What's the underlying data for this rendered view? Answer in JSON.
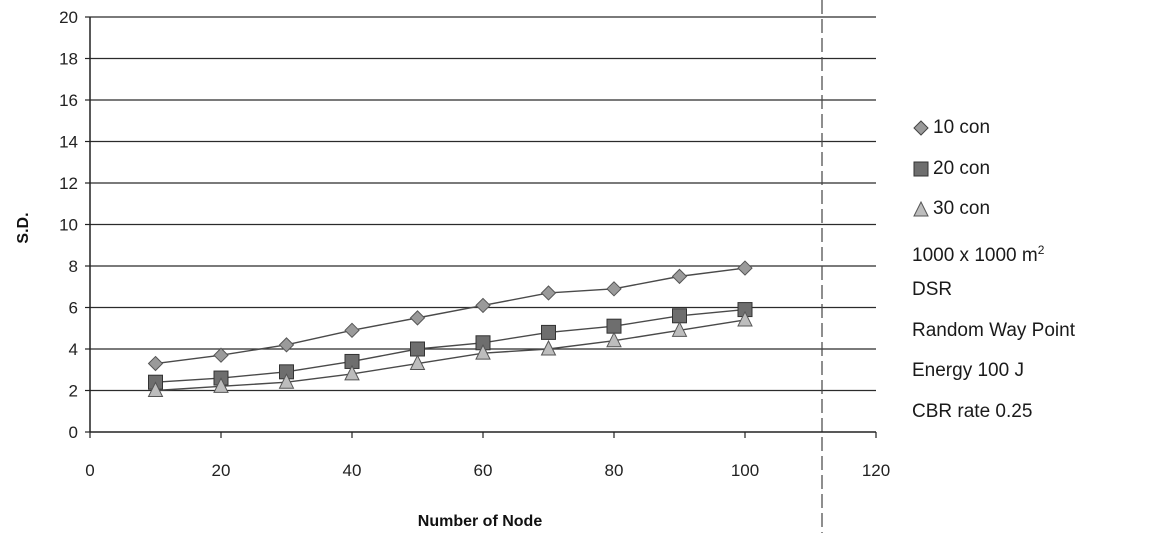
{
  "chart_data": {
    "type": "line",
    "xlabel": "Number of Node",
    "ylabel": "S.D.",
    "xlim": [
      0,
      120
    ],
    "ylim": [
      0,
      20
    ],
    "xticks": [
      0,
      20,
      40,
      60,
      80,
      100,
      120
    ],
    "yticks": [
      0,
      2,
      4,
      6,
      8,
      10,
      12,
      14,
      16,
      18,
      20
    ],
    "grid": "horizontal",
    "legend_position": "right",
    "x": [
      10,
      20,
      30,
      40,
      50,
      60,
      70,
      80,
      90,
      100
    ],
    "series": [
      {
        "name": "10 con",
        "marker": "diamond",
        "color": "#9a9a9a",
        "values": [
          3.3,
          3.7,
          4.2,
          4.9,
          5.5,
          6.1,
          6.7,
          6.9,
          7.5,
          7.9
        ]
      },
      {
        "name": "20 con",
        "marker": "square",
        "color": "#6e6e6e",
        "values": [
          2.4,
          2.6,
          2.9,
          3.4,
          4.0,
          4.3,
          4.8,
          5.1,
          5.6,
          5.9
        ]
      },
      {
        "name": "30 con",
        "marker": "triangle",
        "color": "#bdbdbd",
        "values": [
          2.0,
          2.2,
          2.4,
          2.8,
          3.3,
          3.8,
          4.0,
          4.4,
          4.9,
          5.4
        ]
      }
    ]
  },
  "notes": {
    "area_prefix": "1000 x 1000 m",
    "area_sup": "2",
    "protocol": "DSR",
    "mobility": "Random Way Point",
    "energy": "Energy 100 J",
    "cbr": "CBR rate 0.25"
  }
}
